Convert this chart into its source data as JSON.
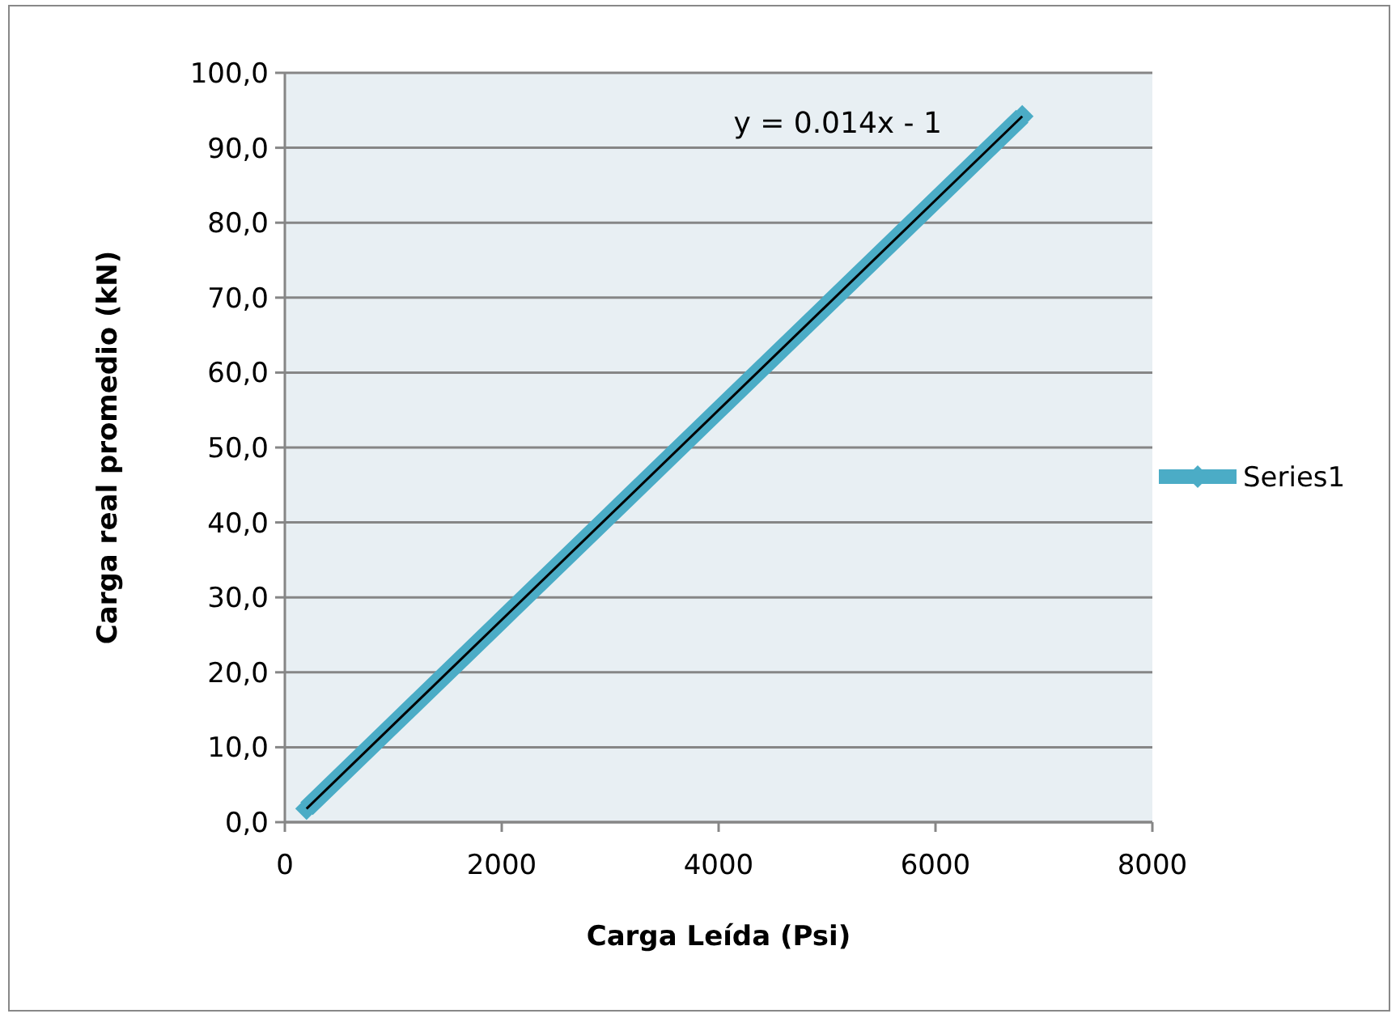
{
  "chart_data": {
    "type": "line",
    "xlabel": "Carga Leída (Psi)",
    "ylabel": "Carga real promedio (kN)",
    "xlim": [
      0,
      8000
    ],
    "xticks": [
      0,
      2000,
      4000,
      6000,
      8000
    ],
    "ylim": [
      0,
      100
    ],
    "yticks": [
      {
        "value": 0,
        "label": "0,0"
      },
      {
        "value": 10,
        "label": "10,0"
      },
      {
        "value": 20,
        "label": "20,0"
      },
      {
        "value": 30,
        "label": "30,0"
      },
      {
        "value": 40,
        "label": "40,0"
      },
      {
        "value": 50,
        "label": "50,0"
      },
      {
        "value": 60,
        "label": "60,0"
      },
      {
        "value": 70,
        "label": "70,0"
      },
      {
        "value": 80,
        "label": "80,0"
      },
      {
        "value": 90,
        "label": "90,0"
      },
      {
        "value": 100,
        "label": "100,0"
      }
    ],
    "grid": "y",
    "legend": "right",
    "marker": "diamond",
    "series": [
      {
        "name": "Series1",
        "color": "#4bacc6",
        "x": [
          200,
          1000,
          2000,
          3000,
          4000,
          5000,
          6000,
          6800
        ],
        "values": [
          1.8,
          13,
          27,
          41,
          55,
          69,
          83,
          94.2
        ]
      },
      {
        "type": "line",
        "color": "#000000",
        "marker": "none",
        "x": [
          200,
          6800
        ],
        "values": [
          1.8,
          94.2
        ]
      }
    ],
    "annotations": [
      "y = 0.014x - 1"
    ]
  }
}
